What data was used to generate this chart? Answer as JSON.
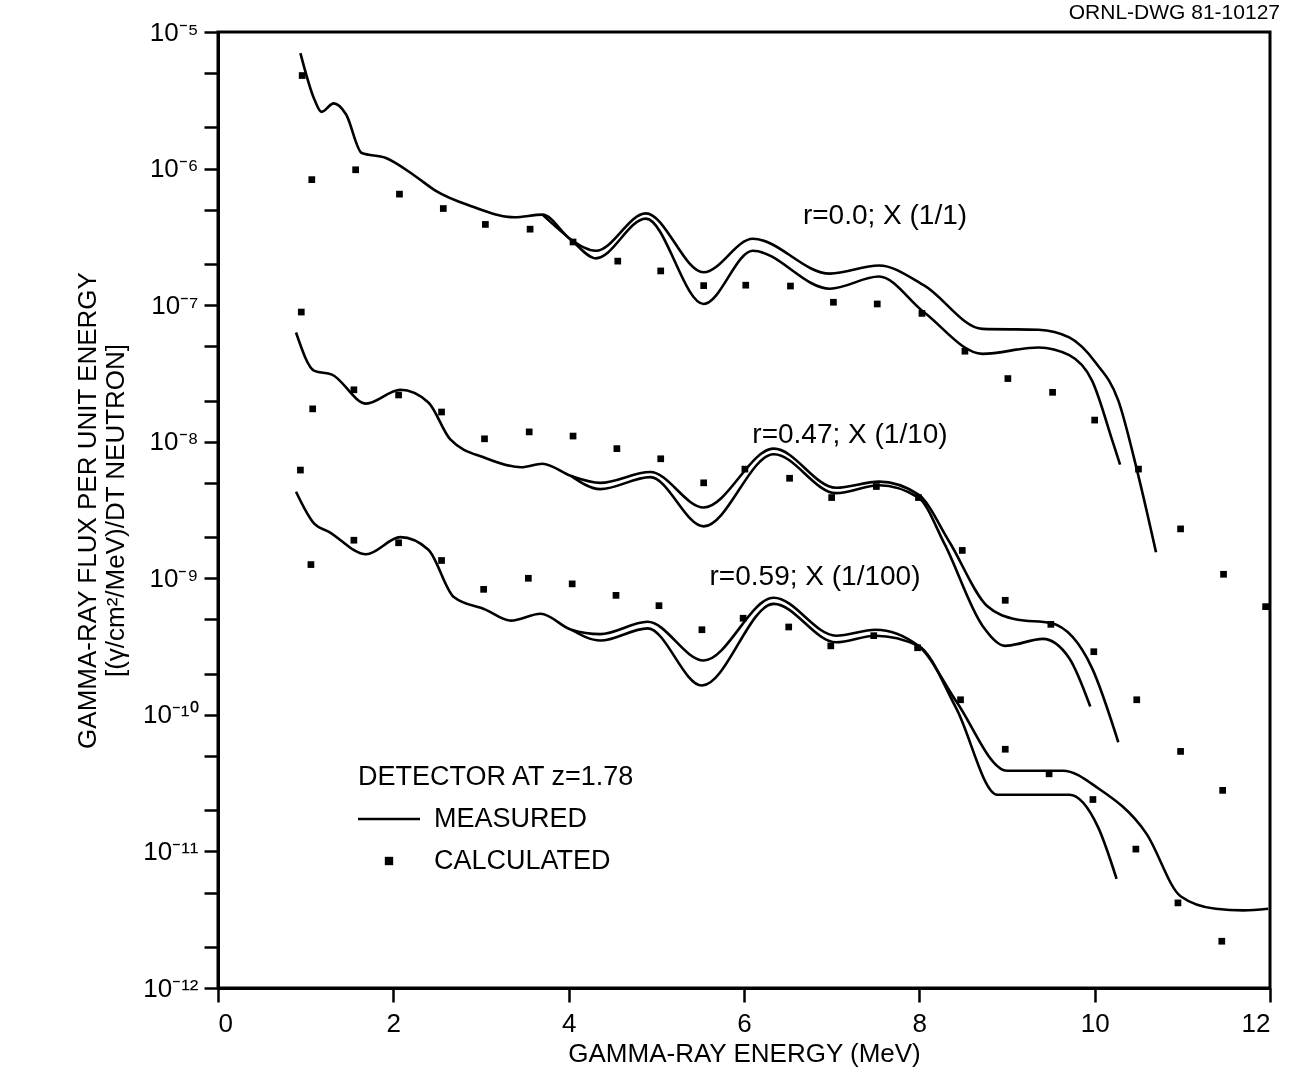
{
  "chart_data": {
    "type": "line",
    "xlabel": "GAMMA-RAY ENERGY (MeV)",
    "ylabel": "GAMMA-RAY FLUX PER UNIT ENERGY\n[(γ/cm²/MeV)/DT NEUTRON]",
    "legend_title": "DETECTOR AT z=1.78",
    "legend": "bottom left",
    "log": "y",
    "grid": false,
    "line_style": "solid",
    "xlim": [
      0,
      12
    ],
    "xticks": [
      0,
      2,
      4,
      6,
      8,
      10,
      12
    ],
    "ylim": [
      1e-12,
      1e-05
    ],
    "yticks": [
      {
        "value": 1e-12,
        "label": "10⁻¹²"
      },
      {
        "value": 2e-12,
        "label": null
      },
      {
        "value": 5e-12,
        "label": null
      },
      {
        "value": 1e-11,
        "label": "10⁻¹¹"
      },
      {
        "value": 2e-11,
        "label": null
      },
      {
        "value": 5e-11,
        "label": null
      },
      {
        "value": 1e-10,
        "label": "10⁻¹⁰"
      },
      {
        "value": 2e-10,
        "label": null
      },
      {
        "value": 5e-10,
        "label": null
      },
      {
        "value": 1e-09,
        "label": "10⁻⁹"
      },
      {
        "value": 2e-09,
        "label": null
      },
      {
        "value": 5e-09,
        "label": null
      },
      {
        "value": 1e-08,
        "label": "10⁻⁸"
      },
      {
        "value": 2e-08,
        "label": null
      },
      {
        "value": 5e-08,
        "label": null
      },
      {
        "value": 1e-07,
        "label": "10⁻⁷"
      },
      {
        "value": 2e-07,
        "label": null
      },
      {
        "value": 5e-07,
        "label": null
      },
      {
        "value": 1e-06,
        "label": "10⁻⁶"
      },
      {
        "value": 2e-06,
        "label": null
      },
      {
        "value": 5e-06,
        "label": null
      },
      {
        "value": 1e-05,
        "label": "10⁻⁵"
      }
    ],
    "series": [
      {
        "name": "MEASURED",
        "color": "#000000",
        "x": [
          0.94,
          1.1,
          1.18,
          1.32,
          1.46,
          1.64,
          1.91,
          2.24,
          2.48,
          2.89,
          3.38,
          3.7,
          4.03,
          4.31,
          4.88,
          5.54,
          6.1,
          6.98,
          7.54,
          8.05,
          8.72,
          9.36,
          9.71,
          10.01,
          10.27,
          10.48,
          10.7
        ],
        "values": [
          7e-06,
          3.2e-06,
          2.6e-06,
          3e-06,
          2.5e-06,
          1.3e-06,
          1.2e-06,
          8.9e-07,
          6.9e-07,
          5.3e-07,
          4.4e-07,
          4.6e-07,
          3e-07,
          2.5e-07,
          4.7e-07,
          1.74e-07,
          3.06e-07,
          1.7e-07,
          1.95e-07,
          1.4e-07,
          6.7e-08,
          6.6e-08,
          5.8e-08,
          3.8e-08,
          2e-08,
          6.3e-09,
          1.55e-09
        ]
      },
      {
        "color": "#000000",
        "x": [
          3.7,
          4.03,
          4.31,
          4.88,
          5.54,
          6.1,
          6.98,
          7.54,
          8.05,
          8.72,
          9.36,
          9.71,
          9.97,
          10.21,
          10.29
        ],
        "values": [
          4.6e-07,
          3e-07,
          2.2e-07,
          4.3e-07,
          1.02e-07,
          2.5e-07,
          1.32e-07,
          1.62e-07,
          8.9e-08,
          4.4e-08,
          4.9e-08,
          4.3e-08,
          2.8e-08,
          9.8e-09,
          6.8e-09
        ]
      },
      {
        "color": "#000000",
        "x": [
          0.89,
          1.1,
          1.3,
          1.69,
          2.08,
          2.4,
          2.65,
          3.05,
          3.46,
          3.7,
          4.03,
          4.36,
          4.93,
          5.54,
          6.34,
          7.05,
          7.54,
          7.99,
          8.34,
          8.77,
          9.11,
          9.5,
          9.97,
          10.27
        ],
        "values": [
          6.3e-08,
          3.3e-08,
          3.1e-08,
          1.9e-08,
          2.4e-08,
          1.94e-08,
          1.04e-08,
          7.6e-09,
          6.5e-09,
          6.9e-09,
          5.6e-09,
          5e-09,
          6e-09,
          3.3e-09,
          8.9e-09,
          4.6e-09,
          5.1e-09,
          4.1e-09,
          1.86e-09,
          6.3e-10,
          5e-10,
          4.7e-10,
          2.2e-10,
          6.3e-11
        ]
      },
      {
        "color": "#000000",
        "x": [
          4.03,
          4.36,
          4.93,
          5.54,
          6.34,
          7.05,
          7.54,
          7.99,
          8.29,
          8.72,
          8.98,
          9.41,
          9.71,
          9.95
        ],
        "values": [
          5.6e-09,
          4.5e-09,
          5.5e-09,
          2.4e-09,
          8.1e-09,
          4.2e-09,
          4.8e-09,
          3.9e-09,
          1.77e-09,
          4.5e-10,
          3.2e-10,
          3.6e-10,
          2.6e-10,
          1.15e-10
        ]
      },
      {
        "color": "#000000",
        "x": [
          0.89,
          1.1,
          1.26,
          1.69,
          2.08,
          2.4,
          2.69,
          3.05,
          3.34,
          3.68,
          4.03,
          4.36,
          4.9,
          5.54,
          6.34,
          7.05,
          7.5,
          7.99,
          8.42,
          9.0,
          9.64,
          10.04,
          10.59,
          10.98,
          11.38,
          11.7,
          11.98
        ],
        "values": [
          4.3e-09,
          2.5e-09,
          2.2e-09,
          1.5e-09,
          2e-09,
          1.62e-09,
          7.3e-10,
          5.9e-10,
          4.9e-10,
          5.5e-10,
          4.2e-10,
          3.9e-10,
          4.8e-10,
          2.5e-10,
          7.2e-10,
          3.8e-10,
          4.2e-10,
          3.2e-10,
          1.26e-10,
          3.9e-11,
          3.9e-11,
          2.9e-11,
          1.35e-11,
          4.7e-12,
          3.8e-12,
          3.7e-12,
          3.8e-12
        ]
      },
      {
        "color": "#000000",
        "x": [
          4.03,
          4.36,
          4.9,
          5.52,
          6.34,
          7.05,
          7.5,
          7.99,
          8.42,
          8.89,
          9.0,
          9.71,
          10.04,
          10.25
        ],
        "values": [
          4.2e-10,
          3.5e-10,
          4.3e-10,
          1.64e-10,
          6.5e-10,
          3.4e-10,
          3.8e-10,
          3.2e-10,
          1.12e-10,
          2.6e-11,
          2.6e-11,
          2.6e-11,
          1.5e-11,
          6.3e-12
        ]
      },
      {
        "name": "CALCULATED",
        "type": "scatter",
        "marker": "square",
        "color": "#000000",
        "x": [
          0.96,
          1.07,
          1.57,
          2.07,
          2.57,
          3.05,
          3.56,
          4.05,
          4.56,
          5.05,
          5.54,
          6.02,
          6.53,
          7.02,
          7.52,
          8.03,
          8.52,
          9.01,
          9.52,
          10.0,
          10.5,
          10.98,
          11.47,
          11.95
        ],
        "values": [
          4.8e-06,
          8.3e-07,
          9.8e-07,
          6.5e-07,
          5.1e-07,
          3.9e-07,
          3.6e-07,
          2.9e-07,
          2.1e-07,
          1.78e-07,
          1.39e-07,
          1.4e-07,
          1.38e-07,
          1.05e-07,
          1.02e-07,
          8.7e-08,
          4.6e-08,
          2.9e-08,
          2.3e-08,
          1.44e-08,
          6.3e-09,
          2.3e-09,
          1.07e-09,
          6.2e-10
        ]
      },
      {
        "type": "scatter",
        "marker": "square",
        "color": "#000000",
        "x": [
          0.95,
          1.08,
          1.55,
          2.06,
          2.55,
          3.04,
          3.55,
          4.05,
          4.55,
          5.05,
          5.54,
          6.01,
          6.52,
          7.0,
          7.51,
          7.99,
          8.49,
          8.98,
          9.5,
          9.99,
          10.48,
          10.98,
          11.46
        ],
        "values": [
          8.9e-08,
          1.74e-08,
          2.4e-08,
          2.2e-08,
          1.65e-08,
          1.05e-08,
          1.18e-08,
          1.1e-08,
          8.9e-09,
          7.5e-09,
          5e-09,
          6.3e-09,
          5.4e-09,
          3.9e-09,
          4.7e-09,
          3.9e-09,
          1.6e-09,
          6.9e-10,
          4.6e-10,
          2.9e-10,
          1.29e-10,
          5.4e-11,
          2.8e-11
        ]
      },
      {
        "type": "scatter",
        "marker": "square",
        "color": "#000000",
        "x": [
          0.94,
          1.06,
          1.55,
          2.06,
          2.55,
          3.03,
          3.54,
          4.04,
          4.54,
          5.03,
          5.52,
          5.99,
          6.51,
          6.99,
          7.48,
          7.98,
          8.47,
          8.98,
          9.48,
          9.98,
          10.47,
          10.95,
          11.45
        ],
        "values": [
          6.2e-09,
          1.26e-09,
          1.9e-09,
          1.82e-09,
          1.35e-09,
          8.3e-10,
          1e-09,
          9.1e-10,
          7.5e-10,
          6.3e-10,
          4.2e-10,
          5.1e-10,
          4.4e-10,
          3.2e-10,
          3.8e-10,
          3.1e-10,
          1.29e-10,
          5.6e-11,
          3.7e-11,
          2.4e-11,
          1.04e-11,
          4.2e-12,
          2.2e-12
        ]
      }
    ],
    "annotations": [
      "ORNL-DWG 81-10127",
      "r=0.0; X (1/1)",
      "r=0.47; X (1/10)",
      "r=0.59; X (1/100)"
    ]
  }
}
